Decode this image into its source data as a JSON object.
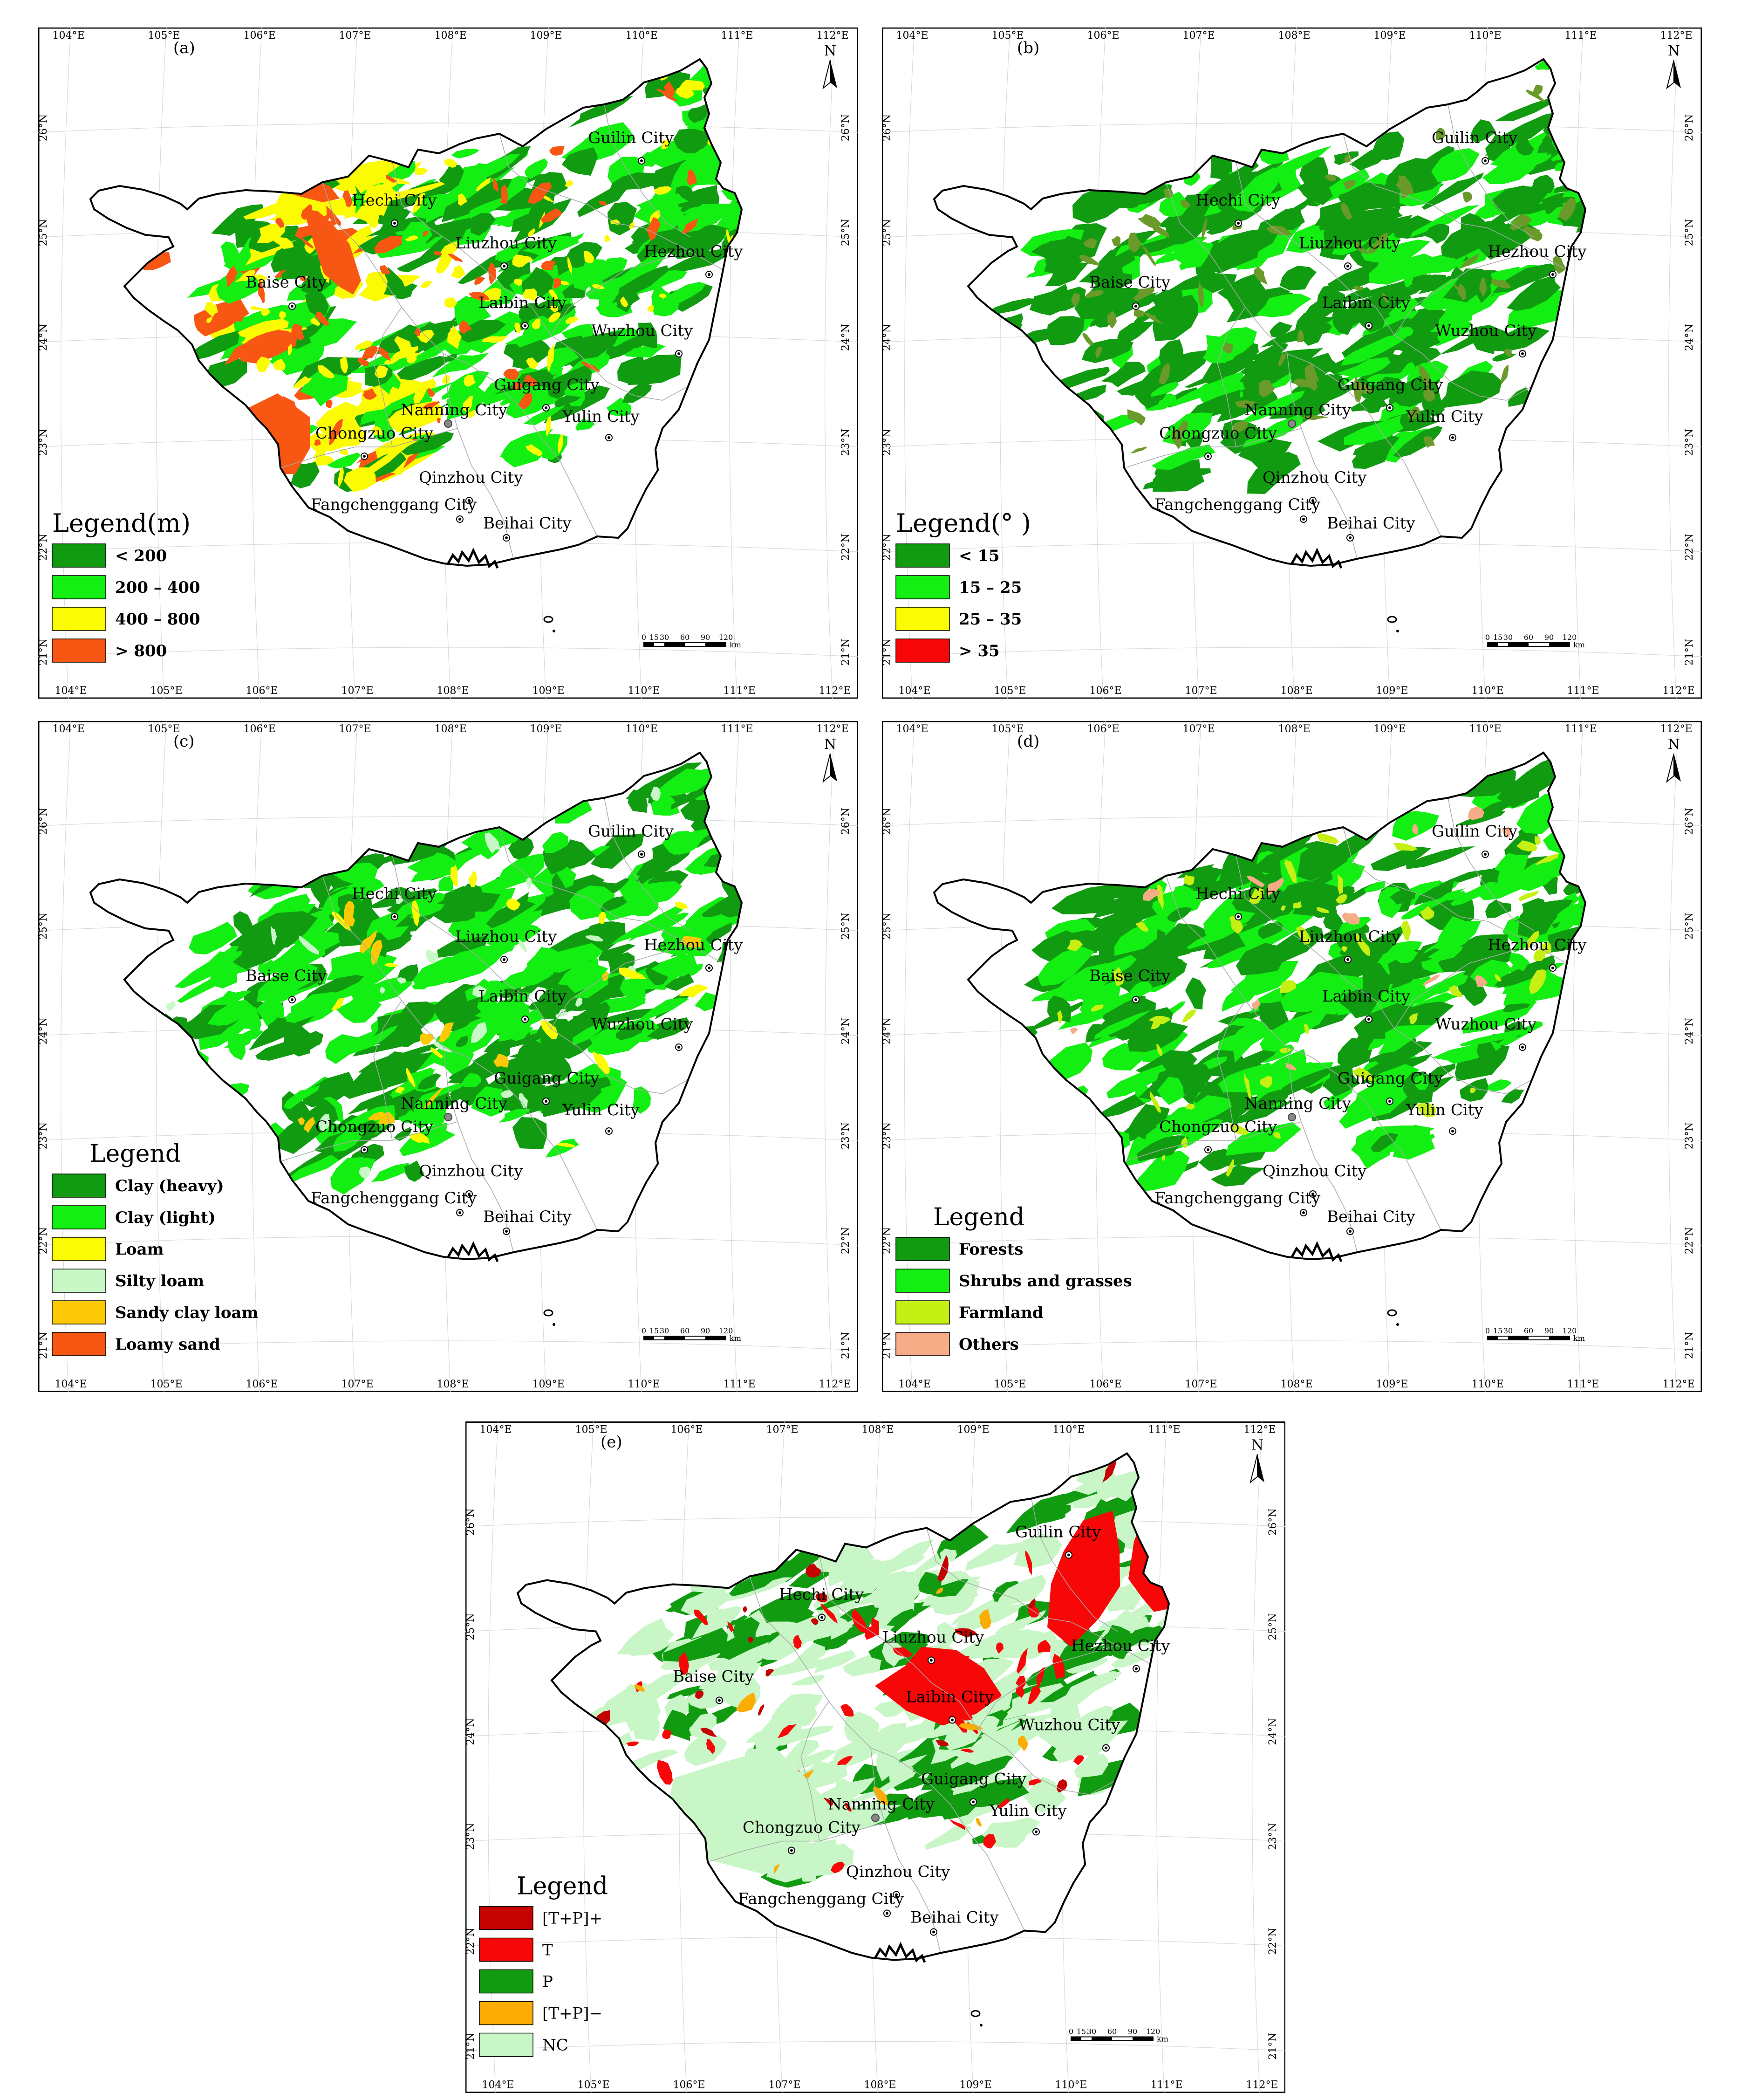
{
  "colors": {
    "forest_dark": "#119b11",
    "green_light": "#13ee13",
    "yellow": "#fbfb04",
    "orange_red": "#f75613",
    "red": "#f70707",
    "dark_red": "#c50202",
    "silty": "#c9f8c7",
    "sandy": "#fbc905",
    "farmland": "#c6ef13",
    "others": "#f6ac86",
    "orange": "#fbad05",
    "nc": "#c8f6c6",
    "boundary": "#000000",
    "county_lines": "#a9a9a9"
  },
  "lon_ticks": [
    "104°E",
    "105°E",
    "106°E",
    "107°E",
    "108°E",
    "109°E",
    "110°E",
    "111°E",
    "112°E"
  ],
  "lat_ticks": [
    "21°N",
    "22°N",
    "23°N",
    "24°N",
    "25°N",
    "26°N"
  ],
  "cities": [
    "Guilin City",
    "Hechi City",
    "Liuzhou City",
    "Hezhou City",
    "Baise City",
    "Laibin City",
    "Wuzhou City",
    "Guigang City",
    "Nanning City",
    "Yulin City",
    "Chongzuo City",
    "Qinzhou City",
    "Fangchenggang City",
    "Beihai City"
  ],
  "north_arrow": "N",
  "scale": {
    "ticks": [
      "0",
      "15",
      "30",
      "60",
      "90",
      "120"
    ],
    "unit": "km"
  },
  "panels": [
    {
      "label": "(a)",
      "legend_title": "Legend(m)",
      "legend": [
        {
          "label": "< 200",
          "color": "#119b11"
        },
        {
          "label": "200 – 400",
          "color": "#13ee13"
        },
        {
          "label": "400 – 800",
          "color": "#fbfb04"
        },
        {
          "label": "> 800",
          "color": "#f75613"
        }
      ]
    },
    {
      "label": "(b)",
      "legend_title": "Legend(° )",
      "legend": [
        {
          "label": "< 15",
          "color": "#119b11"
        },
        {
          "label": "15 – 25",
          "color": "#13ee13"
        },
        {
          "label": "25 – 35",
          "color": "#fbfb04"
        },
        {
          "label": "> 35",
          "color": "#f70707"
        }
      ]
    },
    {
      "label": "(c)",
      "legend_title": "Legend",
      "legend": [
        {
          "label": "Clay (heavy)",
          "color": "#119b11"
        },
        {
          "label": "Clay (light)",
          "color": "#13ee13"
        },
        {
          "label": "Loam",
          "color": "#fbfb04"
        },
        {
          "label": "Silty loam",
          "color": "#c9f8c7"
        },
        {
          "label": "Sandy clay loam",
          "color": "#fbc905"
        },
        {
          "label": "Loamy sand",
          "color": "#f75613"
        }
      ]
    },
    {
      "label": "(d)",
      "legend_title": "Legend",
      "legend": [
        {
          "label": "Forests",
          "color": "#119b11"
        },
        {
          "label": "Shrubs and grasses",
          "color": "#13ee13"
        },
        {
          "label": "Farmland",
          "color": "#c6ef13"
        },
        {
          "label": "Others",
          "color": "#f6ac86"
        }
      ]
    },
    {
      "label": "(e)",
      "legend_title": "Legend",
      "legend": [
        {
          "label": "[T+P]+",
          "color": "#c50202"
        },
        {
          "label": "T",
          "color": "#f70707"
        },
        {
          "label": "P",
          "color": "#119b11"
        },
        {
          "label": "[T+P]−",
          "color": "#fbad05"
        },
        {
          "label": "NC",
          "color": "#c8f6c6"
        }
      ]
    }
  ]
}
